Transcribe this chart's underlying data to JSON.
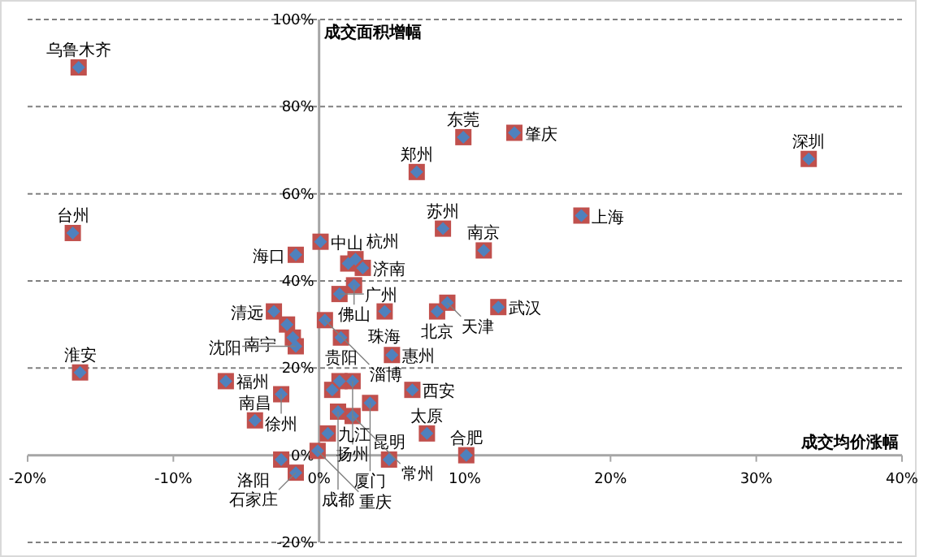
{
  "chart_data": {
    "type": "scatter",
    "xlabel": "成交均价涨幅",
    "ylabel": "成交面积增幅",
    "x": [
      -16.5,
      -16.9,
      -16.4,
      -6.4,
      -4.4,
      -2.6,
      -2.6,
      -1.6,
      -1.6,
      0.1,
      6.7,
      9.9,
      13.4,
      33.6,
      18.0,
      8.5,
      11.3,
      2.5,
      3.0,
      2.0,
      2.4,
      1.4,
      4.5,
      8.1,
      8.8,
      12.3,
      5.0,
      6.4,
      7.4,
      10.1,
      4.8,
      -3.1,
      -2.2,
      -1.8,
      -1.6,
      0.4,
      1.5,
      2.3,
      1.4,
      0.9,
      3.5,
      2.3,
      1.3,
      0.6,
      -0.1
    ],
    "series": [
      {
        "color": "#c0504d",
        "marker": "square",
        "values": [
          89,
          51,
          19,
          17,
          8,
          14,
          -1,
          -4,
          46,
          49,
          65,
          73,
          74,
          68,
          55,
          52,
          47,
          45,
          43,
          44,
          39,
          37,
          33,
          33,
          35,
          34,
          23,
          15,
          5,
          0,
          -1,
          33,
          30,
          27,
          25,
          31,
          27,
          17,
          17,
          15,
          12,
          9,
          10,
          5,
          1
        ]
      },
      {
        "color": "#4f81bd",
        "marker": "diamond",
        "values": [
          89,
          51,
          19,
          17,
          8,
          14,
          -1,
          -4,
          46,
          49,
          65,
          73,
          74,
          68,
          55,
          52,
          47,
          45,
          43,
          44,
          39,
          37,
          33,
          33,
          35,
          34,
          23,
          15,
          5,
          0,
          -1,
          33,
          30,
          27,
          25,
          31,
          27,
          17,
          17,
          15,
          12,
          9,
          10,
          5,
          1
        ]
      }
    ],
    "annotations": [
      {
        "text": "乌鲁木齐",
        "x": -16.5,
        "y": 89
      },
      {
        "text": "台州",
        "x": -16.9,
        "y": 51
      },
      {
        "text": "淮安",
        "x": -16.4,
        "y": 19
      },
      {
        "text": "福州",
        "x": -6.4,
        "y": 17
      },
      {
        "text": "南昌",
        "x": -4.4,
        "y": 8
      },
      {
        "text": "徐州",
        "x": -2.6,
        "y": 14
      },
      {
        "text": "洛阳",
        "x": -2.6,
        "y": -1
      },
      {
        "text": "石家庄",
        "x": -1.6,
        "y": -4
      },
      {
        "text": "海口",
        "x": -1.6,
        "y": 46
      },
      {
        "text": "中山",
        "x": 0.1,
        "y": 49
      },
      {
        "text": "郑州",
        "x": 6.7,
        "y": 65
      },
      {
        "text": "东莞",
        "x": 9.9,
        "y": 73
      },
      {
        "text": "肇庆",
        "x": 13.4,
        "y": 74
      },
      {
        "text": "深圳",
        "x": 33.6,
        "y": 68
      },
      {
        "text": "上海",
        "x": 18.0,
        "y": 55
      },
      {
        "text": "苏州",
        "x": 8.5,
        "y": 52
      },
      {
        "text": "南京",
        "x": 11.3,
        "y": 47
      },
      {
        "text": "杭州",
        "x": 2.5,
        "y": 45
      },
      {
        "text": "济南",
        "x": 3.0,
        "y": 43
      },
      {
        "text": "佛山",
        "x": 2.4,
        "y": 39
      },
      {
        "text": "广州",
        "x": 1.4,
        "y": 37
      },
      {
        "text": "珠海",
        "x": 4.5,
        "y": 33
      },
      {
        "text": "北京",
        "x": 8.1,
        "y": 33
      },
      {
        "text": "天津",
        "x": 8.8,
        "y": 35
      },
      {
        "text": "武汉",
        "x": 12.3,
        "y": 34
      },
      {
        "text": "惠州",
        "x": 5.0,
        "y": 23
      },
      {
        "text": "西安",
        "x": 6.4,
        "y": 15
      },
      {
        "text": "太原",
        "x": 7.4,
        "y": 5
      },
      {
        "text": "合肥",
        "x": 10.1,
        "y": 0
      },
      {
        "text": "昆明",
        "x": 4.8,
        "y": -1
      },
      {
        "text": "清远",
        "x": -3.1,
        "y": 33
      },
      {
        "text": "南宁",
        "x": -2.2,
        "y": 30
      },
      {
        "text": "沈阳",
        "x": -1.6,
        "y": 25
      },
      {
        "text": "淄博",
        "x": 0.4,
        "y": 31
      },
      {
        "text": "贵阳",
        "x": 1.5,
        "y": 27
      },
      {
        "text": "扬州",
        "x": 2.3,
        "y": 17
      },
      {
        "text": "厦门",
        "x": 3.5,
        "y": 12
      },
      {
        "text": "常州",
        "x": 2.3,
        "y": 9
      },
      {
        "text": "成都",
        "x": 1.3,
        "y": 10
      },
      {
        "text": "九江",
        "x": 0.6,
        "y": 5
      },
      {
        "text": "重庆",
        "x": -0.1,
        "y": 1
      }
    ],
    "xlim": [
      -20,
      40
    ],
    "ylim": [
      -20,
      100
    ],
    "xticks": [
      {
        "value": -20,
        "label": "-20%"
      },
      {
        "value": -10,
        "label": "-10%"
      },
      {
        "value": 0,
        "label": "0%"
      },
      {
        "value": 10,
        "label": "10%"
      },
      {
        "value": 20,
        "label": "20%"
      },
      {
        "value": 30,
        "label": "30%"
      },
      {
        "value": 40,
        "label": "40%"
      }
    ],
    "yticks": [
      {
        "value": -20,
        "label": "-20%"
      },
      {
        "value": 0,
        "label": "0%"
      },
      {
        "value": 20,
        "label": "20%"
      },
      {
        "value": 40,
        "label": "40%"
      },
      {
        "value": 60,
        "label": "60%"
      },
      {
        "value": 80,
        "label": "80%"
      },
      {
        "value": 100,
        "label": "100%"
      }
    ],
    "grid": "y"
  }
}
